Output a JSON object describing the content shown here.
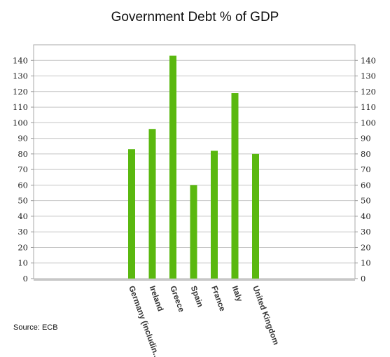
{
  "chart_data": {
    "type": "bar",
    "title": "Government Debt % of GDP",
    "categories": [
      "Germany (includin...",
      "Ireland",
      "Greece",
      "Spain",
      "France",
      "Italy",
      "United Kingdom"
    ],
    "values": [
      83,
      96,
      143,
      60,
      82,
      119,
      80
    ],
    "xlabel": "",
    "ylabel": "",
    "ylim": [
      0,
      150
    ],
    "yticks": [
      0,
      10,
      20,
      30,
      40,
      50,
      60,
      70,
      80,
      90,
      100,
      110,
      120,
      130,
      140
    ],
    "y_axis_both_sides": true,
    "grid": true,
    "legend": "none",
    "bar_color": "#5ab80f"
  },
  "source_note": "Source: ECB"
}
